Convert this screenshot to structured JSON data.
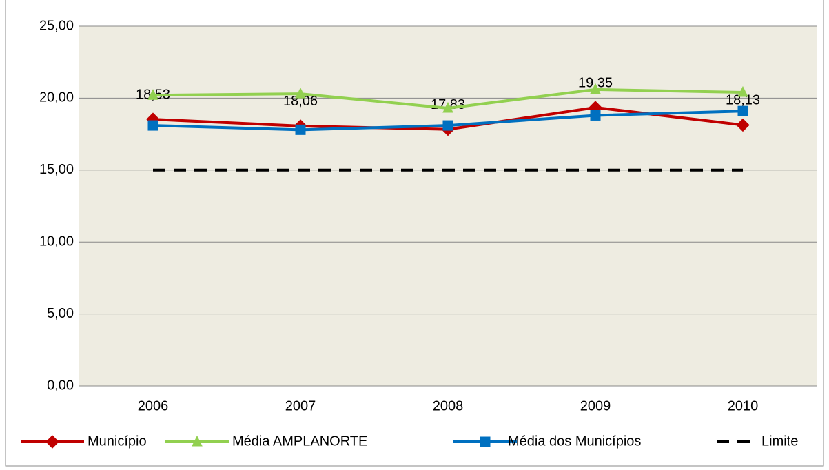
{
  "chart_data": {
    "type": "line",
    "categories": [
      "2006",
      "2007",
      "2008",
      "2009",
      "2010"
    ],
    "series": [
      {
        "name": "Município",
        "color": "#c00000",
        "marker": "diamond",
        "values": [
          18.53,
          18.06,
          17.83,
          19.35,
          18.13
        ],
        "value_labels": [
          "18,53",
          "18,06",
          "17,83",
          "19,35",
          "18,13"
        ]
      },
      {
        "name": "Média AMPLANORTE",
        "color": "#92d050",
        "marker": "triangle",
        "values": [
          20.2,
          20.3,
          19.3,
          20.6,
          20.4
        ]
      },
      {
        "name": "Média dos Municípios",
        "color": "#0070c0",
        "marker": "square",
        "values": [
          18.1,
          17.8,
          18.1,
          18.8,
          19.1
        ]
      },
      {
        "name": "Limite",
        "color": "#000000",
        "dashed": true,
        "values": [
          15,
          15,
          15,
          15,
          15
        ]
      }
    ],
    "ylim": [
      0,
      25
    ],
    "yticks": [
      {
        "value": 0,
        "label": "0,00"
      },
      {
        "value": 5,
        "label": "5,00"
      },
      {
        "value": 10,
        "label": "10,00"
      },
      {
        "value": 15,
        "label": "15,00"
      },
      {
        "value": 20,
        "label": "20,00"
      },
      {
        "value": 25,
        "label": "25,00"
      }
    ],
    "grid": true,
    "legend": "bottom",
    "plot_background": "#eeece1"
  }
}
